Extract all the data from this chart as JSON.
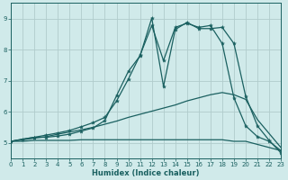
{
  "xlabel": "Humidex (Indice chaleur)",
  "xlim": [
    0,
    23
  ],
  "ylim": [
    4.5,
    9.5
  ],
  "yticks": [
    5,
    6,
    7,
    8,
    9
  ],
  "xtick_labels": [
    "0",
    "1",
    "2",
    "3",
    "4",
    "5",
    "6",
    "7",
    "8",
    "9",
    "10",
    "11",
    "12",
    "13",
    "14",
    "15",
    "16",
    "17",
    "18",
    "19",
    "20",
    "21",
    "22",
    "23"
  ],
  "xticks": [
    0,
    1,
    2,
    3,
    4,
    5,
    6,
    7,
    8,
    9,
    10,
    11,
    12,
    13,
    14,
    15,
    16,
    17,
    18,
    19,
    20,
    21,
    22,
    23
  ],
  "bg_color": "#d0eaea",
  "grid_color": "#b0cccc",
  "line_color": "#1a6060",
  "lines": [
    {
      "x": [
        0,
        1,
        2,
        3,
        4,
        5,
        6,
        7,
        8,
        9,
        10,
        11,
        12,
        13,
        14,
        15,
        16,
        17,
        18,
        19,
        20,
        21,
        22,
        23
      ],
      "y": [
        5.05,
        5.05,
        5.08,
        5.08,
        5.08,
        5.08,
        5.1,
        5.1,
        5.1,
        5.1,
        5.1,
        5.1,
        5.1,
        5.1,
        5.1,
        5.1,
        5.1,
        5.1,
        5.1,
        5.05,
        5.05,
        4.95,
        4.85,
        4.75
      ],
      "marker": false,
      "lw": 0.9
    },
    {
      "x": [
        0,
        1,
        2,
        3,
        4,
        5,
        6,
        7,
        8,
        9,
        10,
        11,
        12,
        13,
        14,
        15,
        16,
        17,
        18,
        19,
        20,
        21,
        22,
        23
      ],
      "y": [
        5.05,
        5.1,
        5.15,
        5.2,
        5.28,
        5.35,
        5.42,
        5.5,
        5.6,
        5.7,
        5.82,
        5.92,
        6.02,
        6.12,
        6.22,
        6.35,
        6.45,
        6.55,
        6.62,
        6.55,
        6.4,
        5.75,
        5.3,
        4.85
      ],
      "marker": false,
      "lw": 0.9
    },
    {
      "x": [
        0,
        1,
        2,
        3,
        4,
        5,
        6,
        7,
        8,
        9,
        10,
        11,
        12,
        13,
        14,
        15,
        16,
        17,
        18,
        19,
        20,
        21,
        22,
        23
      ],
      "y": [
        5.05,
        5.12,
        5.18,
        5.25,
        5.32,
        5.4,
        5.52,
        5.65,
        5.82,
        6.35,
        7.05,
        7.82,
        8.78,
        7.65,
        8.72,
        8.85,
        8.72,
        8.78,
        8.2,
        6.45,
        5.55,
        5.2,
        5.05,
        4.75
      ],
      "marker": true,
      "lw": 0.9
    },
    {
      "x": [
        0,
        2,
        3,
        4,
        5,
        6,
        7,
        8,
        9,
        10,
        11,
        12,
        13,
        14,
        15,
        16,
        17,
        18,
        19,
        20,
        21,
        22,
        23
      ],
      "y": [
        5.05,
        5.18,
        5.18,
        5.22,
        5.28,
        5.38,
        5.48,
        5.72,
        6.52,
        7.3,
        7.8,
        9.02,
        6.82,
        8.65,
        8.88,
        8.68,
        8.68,
        8.72,
        8.2,
        6.5,
        5.55,
        5.08,
        4.68
      ],
      "marker": true,
      "lw": 0.9
    }
  ]
}
